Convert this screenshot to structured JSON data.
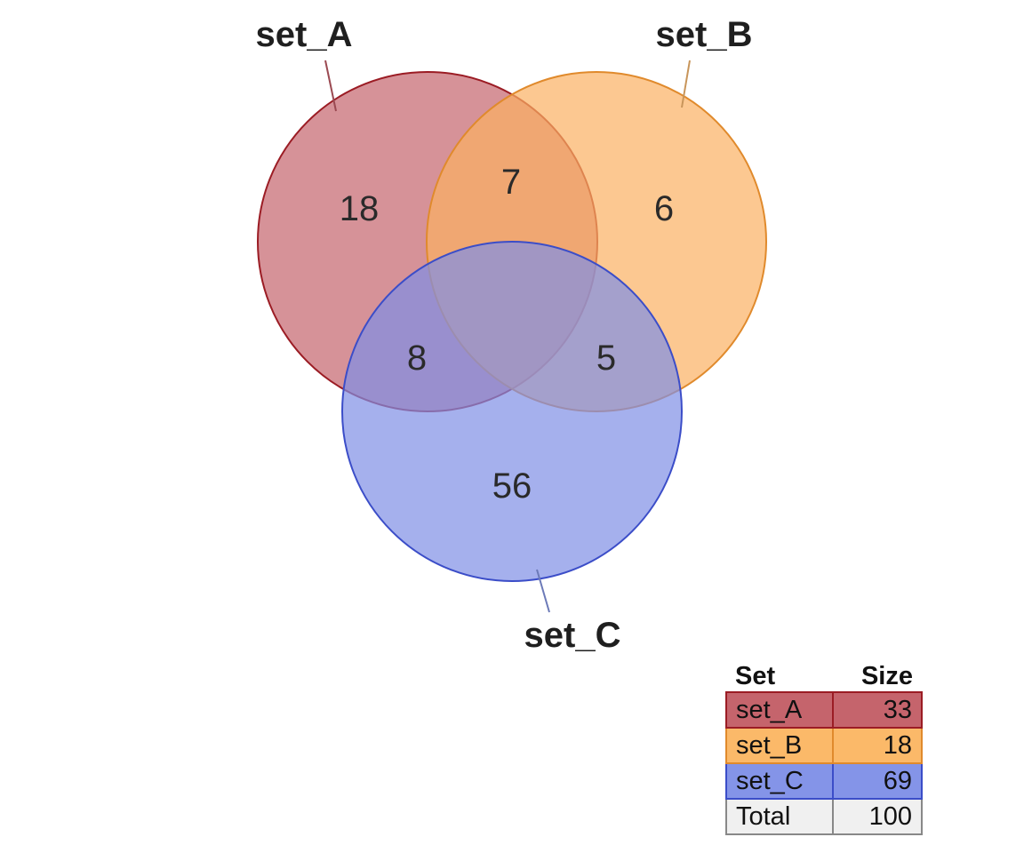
{
  "diagram": {
    "sets": [
      {
        "name": "set_A",
        "size": 33,
        "fill": "#c5646c",
        "stroke": "#9b1c24",
        "leader": "#9b4a52"
      },
      {
        "name": "set_B",
        "size": 18,
        "fill": "#fbb062",
        "stroke": "#e08a2c",
        "leader": "#c8955a"
      },
      {
        "name": "set_C",
        "size": 69,
        "fill": "#7f8ee6",
        "stroke": "#3b4dc8",
        "leader": "#6c7ab8"
      }
    ],
    "regions": {
      "A_only": "18",
      "B_only": "6",
      "C_only": "56",
      "AB_only": "7",
      "AC_only": "8",
      "BC_only": "5"
    }
  },
  "table": {
    "headers": [
      "Set",
      "Size"
    ],
    "rows": [
      {
        "set": "set_A",
        "size": "33",
        "bg": "#c5646c",
        "border": "#9b1c24"
      },
      {
        "set": "set_B",
        "size": "18",
        "bg": "#fbb969",
        "border": "#e08a2c"
      },
      {
        "set": "set_C",
        "size": "69",
        "bg": "#8494e8",
        "border": "#3b4dc8"
      }
    ],
    "total": {
      "label": "Total",
      "size": "100",
      "bg": "#f0f0f0",
      "border": "#888888"
    }
  }
}
